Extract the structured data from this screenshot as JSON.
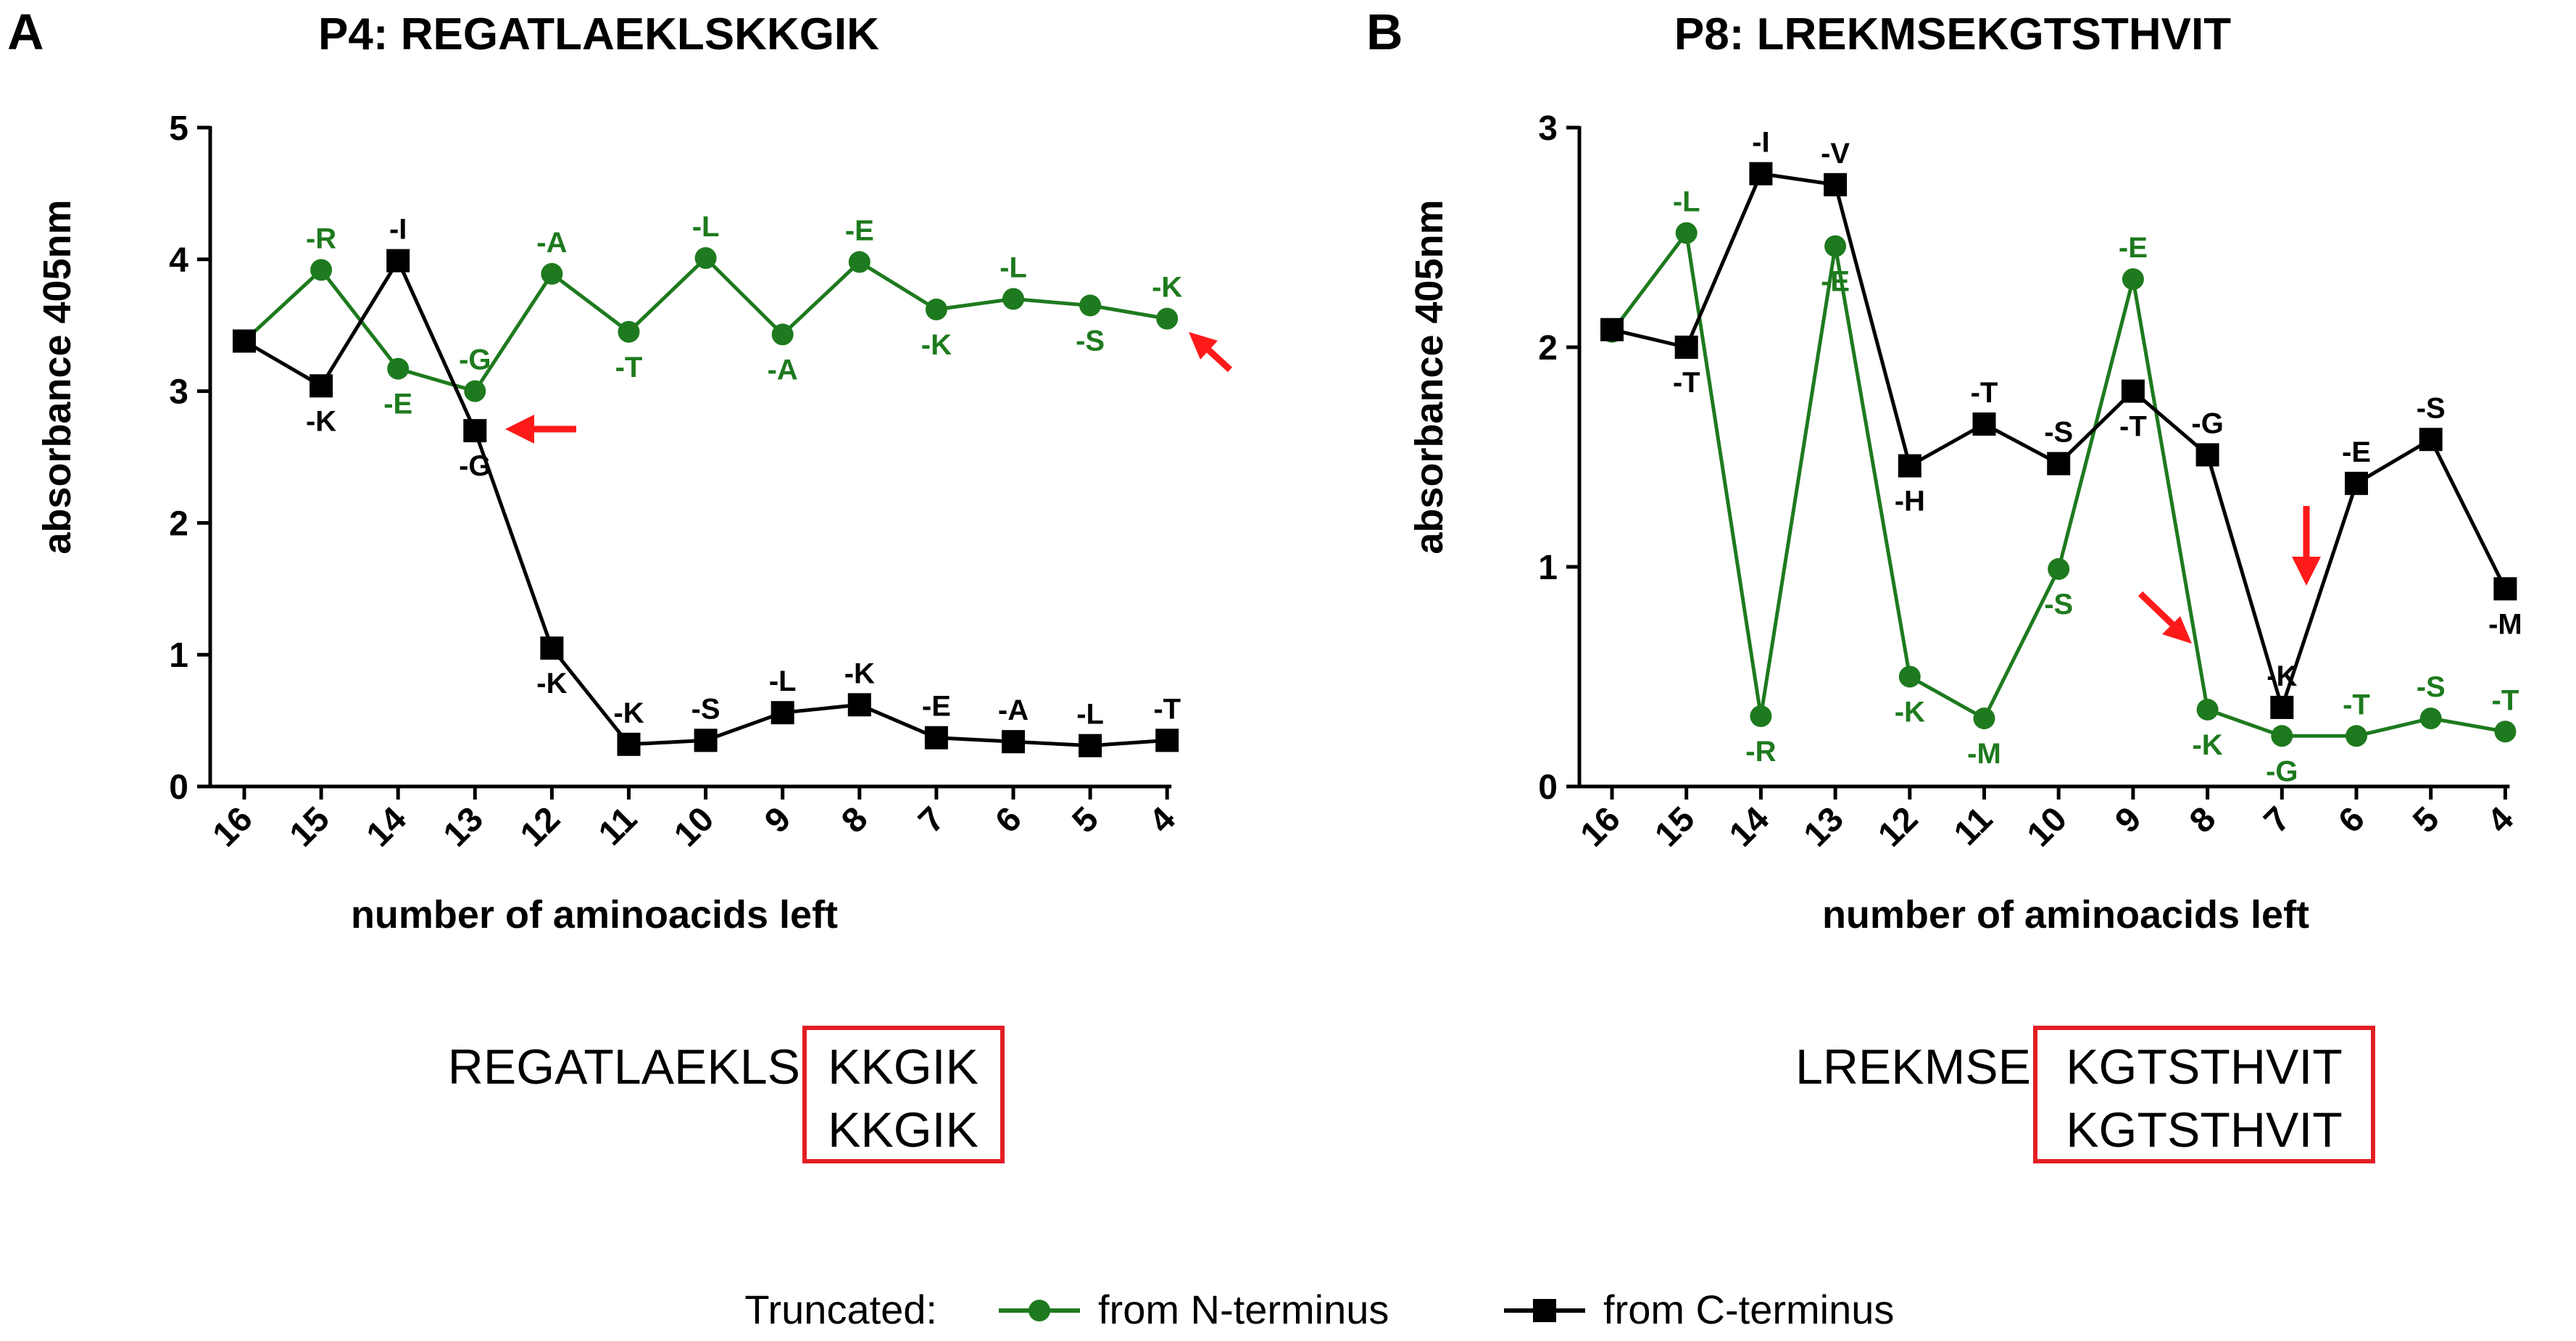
{
  "colors": {
    "n_series": "#1e7a1e",
    "c_series": "#000000",
    "arrow": "#ff1a1a",
    "box": "#e31e24"
  },
  "chart_data": [
    {
      "type": "line",
      "panel": "A",
      "title": "P4: REGATLAEKLSKKGIK",
      "xlabel": "number of aminoacids left",
      "ylabel": "absorbance 405nm",
      "x": [
        16,
        15,
        14,
        13,
        12,
        11,
        10,
        9,
        8,
        7,
        6,
        5,
        4
      ],
      "ylim": [
        0,
        5
      ],
      "yticks": [
        0,
        1,
        2,
        3,
        4,
        5
      ],
      "series": [
        {
          "name": "from N-terminus",
          "marker": "circle",
          "values": [
            3.38,
            3.92,
            3.17,
            3.0,
            3.89,
            3.45,
            4.01,
            3.43,
            3.98,
            3.62,
            3.7,
            3.65,
            3.55
          ],
          "labels": [
            "",
            "-R",
            "-E",
            "-G",
            "-A",
            "-T",
            "-L",
            "-A",
            "-E",
            "-K",
            "-L",
            "-S",
            "-K"
          ]
        },
        {
          "name": "from C-terminus",
          "marker": "square",
          "values": [
            3.38,
            3.04,
            3.99,
            2.7,
            1.05,
            0.32,
            0.35,
            0.56,
            0.62,
            0.37,
            0.34,
            0.31,
            0.35
          ],
          "labels": [
            "",
            "-K",
            "-I",
            "-G",
            "-K",
            "-K",
            "-S",
            "-L",
            "-K",
            "-E",
            "-A",
            "-L",
            "-T"
          ]
        }
      ],
      "sequence": {
        "prefix": "REGATLAEKLS",
        "core_top": "KKGIK",
        "core_bottom": "KKGIK"
      }
    },
    {
      "type": "line",
      "panel": "B",
      "title": "P8: LREKMSEKGTSTHVIT",
      "xlabel": "number of aminoacids left",
      "ylabel": "absorbance 405nm",
      "x": [
        16,
        15,
        14,
        13,
        12,
        11,
        10,
        9,
        8,
        7,
        6,
        5,
        4
      ],
      "ylim": [
        0,
        3
      ],
      "yticks": [
        0,
        1,
        2,
        3
      ],
      "series": [
        {
          "name": "from N-terminus",
          "marker": "circle",
          "values": [
            2.07,
            2.52,
            0.32,
            2.46,
            0.5,
            0.31,
            0.99,
            2.31,
            0.35,
            0.23,
            0.23,
            0.31,
            0.25
          ],
          "labels": [
            "",
            "-L",
            "-R",
            "-E",
            "-K",
            "-M",
            "-S",
            "-E",
            "-K",
            "-G",
            "-T",
            "-S",
            "-T"
          ]
        },
        {
          "name": "from C-terminus",
          "marker": "square",
          "values": [
            2.08,
            2.0,
            2.79,
            2.74,
            1.46,
            1.65,
            1.47,
            1.8,
            1.51,
            0.36,
            1.38,
            1.58,
            0.9
          ],
          "labels": [
            "",
            "-T",
            "-I",
            "-V",
            "-H",
            "-T",
            "-S",
            "-T",
            "-G",
            "-K",
            "-E",
            "-S",
            "-M"
          ]
        }
      ],
      "sequence": {
        "prefix": "LREKMSE",
        "core_top": "KGTSTHVIT",
        "core_bottom": "KGTSTHVIT"
      }
    }
  ],
  "legend": {
    "title": "Truncated:",
    "items": [
      "from N-terminus",
      "from C-terminus"
    ]
  }
}
